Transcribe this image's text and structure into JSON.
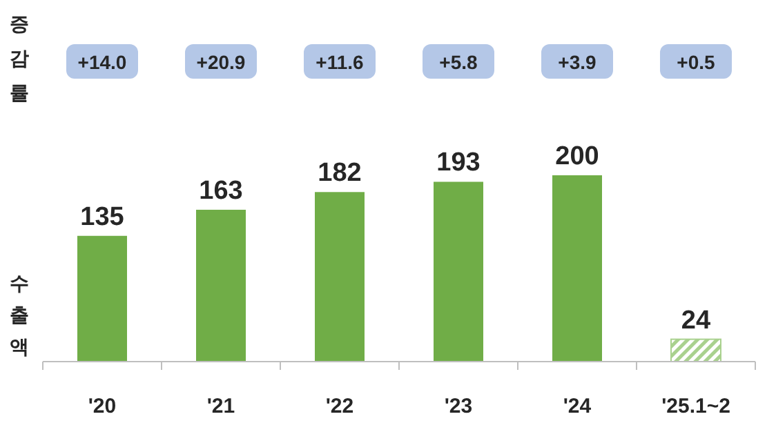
{
  "chart_data": {
    "type": "bar",
    "ylabel": "수출액",
    "categories": [
      "'20",
      "'21",
      "'22",
      "'23",
      "'24",
      "'25.1~2"
    ],
    "values": [
      135,
      163,
      182,
      193,
      200,
      24
    ],
    "colors": [
      "#70ad47",
      "#70ad47",
      "#70ad47",
      "#70ad47",
      "#70ad47",
      "#a9d18e"
    ],
    "data_labels": true,
    "annotations": [
      "증감률",
      "+14.0",
      "+20.9",
      "+11.6",
      "+5.8",
      "+3.9",
      "+0.5"
    ]
  }
}
